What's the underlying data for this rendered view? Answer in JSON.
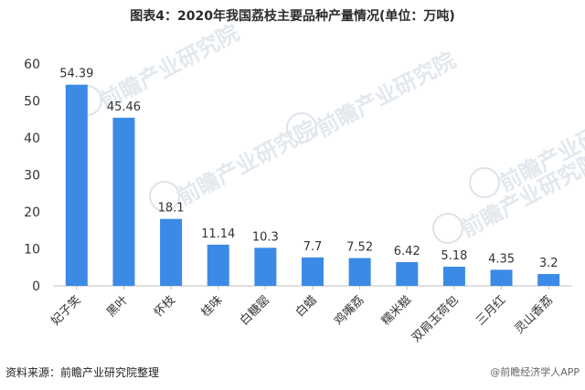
{
  "title": "图表4：2020年我国荔枝主要品种产量情况(单位：万吨)",
  "source": "资料来源：前瞻产业研究院整理",
  "credit": "@前瞻经济学人APP",
  "watermark": "前瞻产业研究院",
  "colors": {
    "bar": "#3b8ae6",
    "axis": "#bfbfbf",
    "text": "#333333"
  },
  "chart_data": {
    "type": "bar",
    "title": "图表4：2020年我国荔枝主要品种产量情况(单位：万吨)",
    "categories": [
      "妃子笑",
      "黑叶",
      "怀枝",
      "桂味",
      "白糖罂",
      "白蜡",
      "鸡嘴荔",
      "糯米糍",
      "双肩玉荷包",
      "三月红",
      "灵山香荔"
    ],
    "values": [
      54.39,
      45.46,
      18.1,
      11.14,
      10.3,
      7.7,
      7.52,
      6.42,
      5.18,
      4.35,
      3.2
    ],
    "value_labels": [
      "54.39",
      "45.46",
      "18.1",
      "11.14",
      "10.3",
      "7.7",
      "7.52",
      "6.42",
      "5.18",
      "4.35",
      "3.2"
    ],
    "yticks": [
      0,
      10,
      20,
      30,
      40,
      50,
      60
    ],
    "ylim": [
      0,
      60
    ],
    "xlabel": "",
    "ylabel": "",
    "grid": false,
    "legend": "none"
  }
}
